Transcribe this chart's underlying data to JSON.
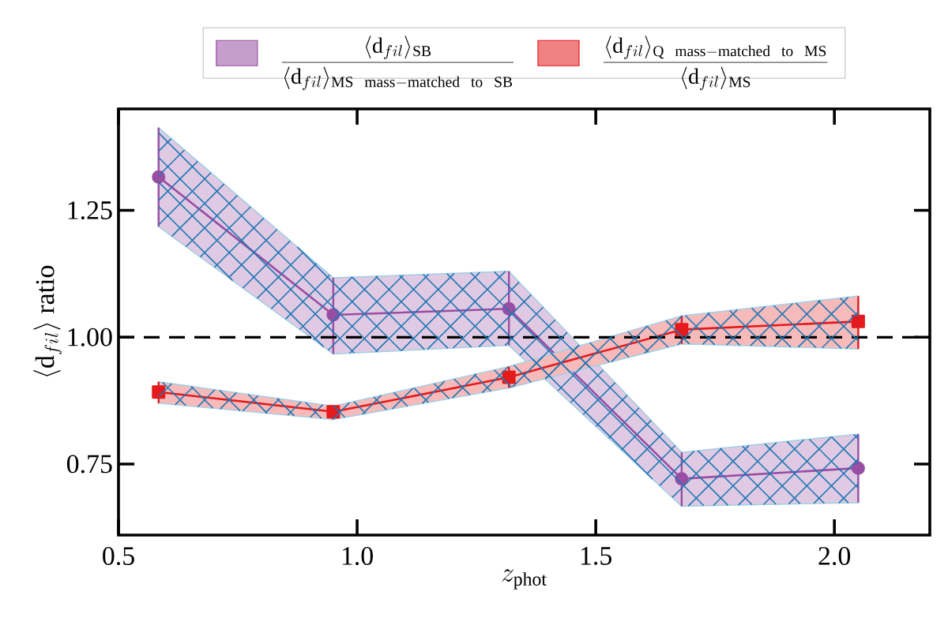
{
  "chart_data": {
    "type": "line",
    "xlabel": "z_{\\mathrm{phot}}",
    "ylabel": "\\langle \\mathrm{d}_{fil} \\rangle\\ \\mathrm{ratio}",
    "x": [
      0.584,
      0.95,
      1.318,
      1.68,
      2.05
    ],
    "series": [
      {
        "name": "\\frac{\\langle \\mathrm{d}_{fil}\\rangle_{\\mathrm{SB}}}{\\langle \\mathrm{d}_{fil}\\rangle_{\\mathrm{MS\\ \\ mass-matched\\ \\ to\\ \\ SB}}}",
        "color": "#984ea3",
        "marker": "circle",
        "values": [
          1.316,
          1.044,
          1.056,
          0.721,
          0.742
        ],
        "errors": [
          [
            1.218,
            1.413
          ],
          [
            0.967,
            1.117
          ],
          [
            0.984,
            1.13
          ],
          [
            0.667,
            0.773
          ],
          [
            0.674,
            0.809
          ]
        ],
        "lower": [
          1.218,
          0.967,
          0.984,
          0.667,
          0.674
        ],
        "upper": [
          1.413,
          1.117,
          1.13,
          0.773,
          0.809
        ]
      },
      {
        "name": "\\frac{\\langle \\mathrm{d}_{fil}\\rangle_{\\mathrm{Q\\ \\ mass-matched\\ \\ to\\ \\ MS}}}{\\langle \\mathrm{d}_{fil}\\rangle_{\\mathrm{MS}}}",
        "color": "#e41a1c",
        "marker": "square",
        "values": [
          0.892,
          0.853,
          0.921,
          1.015,
          1.031
        ],
        "errors": [
          [
            0.87,
            0.912
          ],
          [
            0.838,
            0.864
          ],
          [
            0.9,
            0.942
          ],
          [
            0.987,
            1.042
          ],
          [
            0.977,
            1.081
          ]
        ],
        "lower": [
          0.87,
          0.838,
          0.9,
          0.987,
          0.977
        ],
        "upper": [
          0.912,
          0.864,
          0.942,
          1.042,
          1.081
        ]
      }
    ],
    "xlim": [
      0.5,
      2.2
    ],
    "ylim": [
      0.61,
      1.45
    ],
    "xticks": [
      0.5,
      {
        "value": 1.0,
        "label": "1.0"
      },
      1.5,
      {
        "value": 2.0,
        "label": "2.0"
      }
    ],
    "yticks": [
      0.75,
      {
        "value": 1.0,
        "label": "1.00"
      },
      1.25
    ],
    "ref_lines": [
      {
        "axis": "y",
        "value": 1.0,
        "color": "#000000",
        "line_style": "dashed"
      }
    ],
    "line_style": "solid",
    "grid": false,
    "legend": "top"
  }
}
